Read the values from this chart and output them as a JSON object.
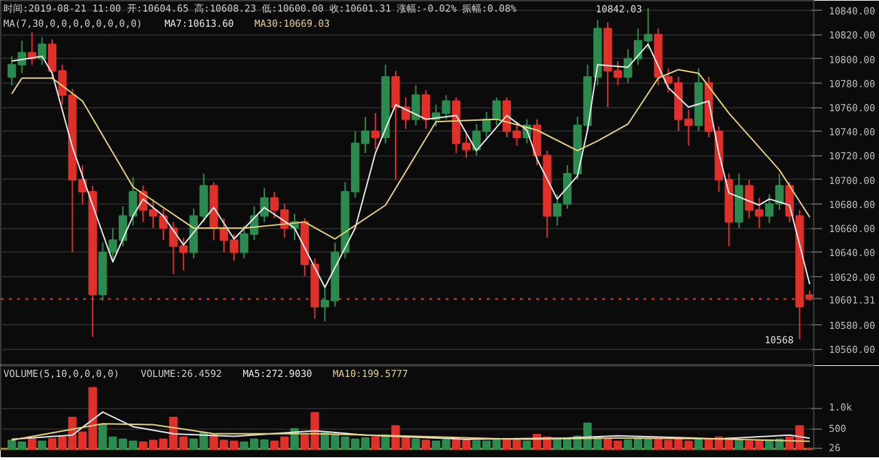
{
  "chart_data": [
    {
      "type": "candlestick",
      "title": "时间:2019-08-21 11:00 开:10604.65 高:10608.23 低:10600.00 收:10601.31 涨幅:-0.02% 振幅:0.08%",
      "annotations": [
        "MA(7,30,0,0,0,0,0,0,0,0)",
        "10842.03",
        "10568"
      ],
      "colors": [
        "#2b8a4e",
        "#2b8a4e",
        "#e0302a",
        "#2b8a4e",
        "#e0302a",
        "#e0302a",
        "#e0302a",
        "#e0302a",
        "#e0302a",
        "#2b8a4e",
        "#2b8a4e",
        "#2b8a4e",
        "#2b8a4e",
        "#e0302a",
        "#e0302a",
        "#e0302a",
        "#e0302a",
        "#e0302a",
        "#2b8a4e",
        "#2b8a4e",
        "#e0302a",
        "#e0302a",
        "#e0302a",
        "#2b8a4e",
        "#2b8a4e",
        "#2b8a4e",
        "#e0302a",
        "#e0302a",
        "#2b8a4e",
        "#e0302a",
        "#e0302a",
        "#2b8a4e",
        "#2b8a4e",
        "#2b8a4e",
        "#2b8a4e",
        "#2b8a4e",
        "#e0302a",
        "#2b8a4e",
        "#e0302a",
        "#e0302a",
        "#2b8a4e",
        "#e0302a",
        "#2b8a4e",
        "#2b8a4e",
        "#e0302a",
        "#e0302a",
        "#2b8a4e",
        "#2b8a4e",
        "#2b8a4e",
        "#e0302a",
        "#e0302a",
        "#2b8a4e",
        "#e0302a",
        "#e0302a",
        "#2b8a4e",
        "#2b8a4e",
        "#2b8a4e",
        "#2b8a4e",
        "#2b8a4e",
        "#e0302a",
        "#e0302a",
        "#2b8a4e",
        "#2b8a4e",
        "#2b8a4e",
        "#e0302a",
        "#e0302a",
        "#e0302a",
        "#e0302a",
        "#2b8a4e",
        "#e0302a",
        "#e0302a",
        "#e0302a",
        "#2b8a4e",
        "#e0302a",
        "#e0302a",
        "#2b8a4e",
        "#2b8a4e",
        "#e0302a",
        "#e0302a",
        "#e0302a"
      ],
      "categories": [
        null,
        null,
        null,
        null,
        null,
        null,
        null,
        null,
        null,
        null,
        null,
        null,
        null,
        null,
        null,
        null,
        null,
        null,
        null,
        null,
        null,
        null,
        null,
        null,
        null,
        null,
        null,
        null,
        null,
        null,
        null,
        null,
        null,
        null,
        null,
        null,
        null,
        null,
        null,
        null,
        null,
        null,
        null,
        null,
        null,
        null,
        null,
        null,
        null,
        null,
        null,
        null,
        null,
        null,
        null,
        null,
        null,
        null,
        null,
        null,
        null,
        null,
        null,
        null,
        null,
        null,
        null,
        null,
        null,
        null,
        null,
        null,
        null,
        null,
        null,
        null,
        null,
        null,
        null,
        null
      ],
      "ohlc": [
        [
          10785,
          10802,
          10778,
          10795
        ],
        [
          10795,
          10815,
          10788,
          10805
        ],
        [
          10805,
          10822,
          10795,
          10800
        ],
        [
          10800,
          10818,
          10795,
          10812
        ],
        [
          10812,
          10816,
          10783,
          10790
        ],
        [
          10790,
          10795,
          10762,
          10770
        ],
        [
          10770,
          10775,
          10640,
          10700
        ],
        [
          10700,
          10712,
          10680,
          10690
        ],
        [
          10690,
          10695,
          10570,
          10605
        ],
        [
          10605,
          10648,
          10600,
          10640
        ],
        [
          10640,
          10660,
          10632,
          10650
        ],
        [
          10650,
          10678,
          10645,
          10670
        ],
        [
          10670,
          10702,
          10662,
          10690
        ],
        [
          10690,
          10695,
          10665,
          10675
        ],
        [
          10675,
          10684,
          10660,
          10670
        ],
        [
          10670,
          10676,
          10650,
          10660
        ],
        [
          10660,
          10665,
          10622,
          10645
        ],
        [
          10645,
          10652,
          10625,
          10640
        ],
        [
          10640,
          10676,
          10635,
          10670
        ],
        [
          10670,
          10705,
          10665,
          10695
        ],
        [
          10695,
          10698,
          10650,
          10660
        ],
        [
          10660,
          10668,
          10640,
          10650
        ],
        [
          10650,
          10655,
          10633,
          10640
        ],
        [
          10640,
          10662,
          10635,
          10655
        ],
        [
          10655,
          10678,
          10650,
          10670
        ],
        [
          10670,
          10693,
          10665,
          10685
        ],
        [
          10685,
          10690,
          10668,
          10675
        ],
        [
          10675,
          10680,
          10652,
          10660
        ],
        [
          10660,
          10672,
          10650,
          10665
        ],
        [
          10665,
          10668,
          10620,
          10630
        ],
        [
          10630,
          10635,
          10585,
          10595
        ],
        [
          10595,
          10612,
          10583,
          10600
        ],
        [
          10600,
          10648,
          10595,
          10640
        ],
        [
          10640,
          10698,
          10635,
          10690
        ],
        [
          10690,
          10740,
          10685,
          10730
        ],
        [
          10730,
          10752,
          10722,
          10740
        ],
        [
          10740,
          10755,
          10725,
          10735
        ],
        [
          10735,
          10795,
          10730,
          10785
        ],
        [
          10785,
          10790,
          10700,
          10760
        ],
        [
          10760,
          10768,
          10742,
          10750
        ],
        [
          10750,
          10778,
          10745,
          10770
        ],
        [
          10770,
          10774,
          10742,
          10750
        ],
        [
          10750,
          10762,
          10744,
          10755
        ],
        [
          10755,
          10770,
          10750,
          10765
        ],
        [
          10765,
          10768,
          10722,
          10730
        ],
        [
          10730,
          10738,
          10718,
          10725
        ],
        [
          10725,
          10746,
          10720,
          10740
        ],
        [
          10740,
          10756,
          10735,
          10750
        ],
        [
          10750,
          10768,
          10745,
          10765
        ],
        [
          10765,
          10768,
          10735,
          10740
        ],
        [
          10740,
          10748,
          10728,
          10735
        ],
        [
          10735,
          10750,
          10730,
          10745
        ],
        [
          10745,
          10750,
          10712,
          10720
        ],
        [
          10720,
          10724,
          10652,
          10670
        ],
        [
          10670,
          10688,
          10662,
          10680
        ],
        [
          10680,
          10712,
          10676,
          10705
        ],
        [
          10705,
          10752,
          10700,
          10745
        ],
        [
          10745,
          10795,
          10740,
          10785
        ],
        [
          10785,
          10832,
          10778,
          10825
        ],
        [
          10825,
          10830,
          10760,
          10790
        ],
        [
          10790,
          10798,
          10778,
          10785
        ],
        [
          10785,
          10808,
          10780,
          10800
        ],
        [
          10800,
          10825,
          10795,
          10815
        ],
        [
          10815,
          10842.03,
          10808,
          10820
        ],
        [
          10820,
          10825,
          10778,
          10785
        ],
        [
          10785,
          10792,
          10772,
          10780
        ],
        [
          10780,
          10785,
          10740,
          10750
        ],
        [
          10750,
          10758,
          10728,
          10745
        ],
        [
          10745,
          10792,
          10740,
          10780
        ],
        [
          10780,
          10785,
          10735,
          10740
        ],
        [
          10740,
          10744,
          10690,
          10700
        ],
        [
          10700,
          10705,
          10645,
          10665
        ],
        [
          10665,
          10705,
          10660,
          10695
        ],
        [
          10695,
          10700,
          10668,
          10675
        ],
        [
          10675,
          10685,
          10660,
          10670
        ],
        [
          10670,
          10688,
          10664,
          10680
        ],
        [
          10680,
          10705,
          10675,
          10695
        ],
        [
          10695,
          10698,
          10665,
          10670
        ],
        [
          10670,
          10675,
          10568,
          10595
        ],
        [
          10604.65,
          10608.23,
          10600.0,
          10601.31
        ]
      ],
      "series": [
        {
          "type": "line",
          "name": "MA7:10613.60",
          "color": "#e8e8e8",
          "values": [
            10798,
            null,
            null,
            10802,
            10788,
            null,
            10727,
            null,
            10679,
            null,
            10632,
            null,
            10670,
            10684,
            null,
            10670,
            null,
            10646,
            null,
            null,
            10677,
            null,
            10651,
            null,
            null,
            10677,
            null,
            null,
            10660,
            null,
            null,
            10611,
            null,
            null,
            10660,
            null,
            10722,
            null,
            10762,
            null,
            null,
            10750,
            null,
            null,
            10753,
            null,
            10724,
            null,
            null,
            10753,
            null,
            10741,
            10717,
            null,
            10684,
            null,
            10703,
            10741,
            10795,
            null,
            null,
            10793,
            null,
            10812,
            null,
            10776,
            null,
            10760,
            null,
            10765,
            10722,
            10689,
            null,
            null,
            10679,
            10684,
            null,
            10679,
            null,
            10613.6
          ]
        },
        {
          "type": "line",
          "name": "MA30:10669.03",
          "color": "#e6d27a",
          "values": [
            10771,
            10784,
            null,
            null,
            10784,
            null,
            null,
            10765,
            null,
            null,
            null,
            null,
            10694,
            null,
            null,
            null,
            null,
            null,
            10660,
            null,
            null,
            null,
            null,
            10660,
            null,
            null,
            null,
            null,
            null,
            10665,
            null,
            null,
            10651,
            null,
            null,
            null,
            null,
            10679,
            null,
            null,
            null,
            null,
            10748,
            null,
            null,
            null,
            null,
            null,
            10750,
            null,
            null,
            null,
            10741,
            null,
            null,
            null,
            10724,
            null,
            10732,
            null,
            null,
            10746,
            null,
            null,
            10784,
            null,
            10791,
            null,
            10788,
            null,
            null,
            10755,
            null,
            null,
            null,
            null,
            10708,
            null,
            null,
            10669.03
          ]
        }
      ],
      "ylim": [
        10546,
        10848
      ],
      "yticks": [
        {
          "value": 10560,
          "label": "10560.00"
        },
        {
          "value": 10580,
          "label": "10580.00"
        },
        {
          "value": 10620,
          "label": "10620.00"
        },
        {
          "value": 10640,
          "label": "10640.00"
        },
        {
          "value": 10660,
          "label": "10660.00"
        },
        {
          "value": 10680,
          "label": "10680.00"
        },
        {
          "value": 10700,
          "label": "10700.00"
        },
        {
          "value": 10720,
          "label": "10720.00"
        },
        {
          "value": 10740,
          "label": "10740.00"
        },
        {
          "value": 10760,
          "label": "10760.00"
        },
        {
          "value": 10780,
          "label": "10780.00"
        },
        {
          "value": 10800,
          "label": "10800.00"
        },
        {
          "value": 10820,
          "label": "10820.00"
        },
        {
          "value": 10840,
          "label": "10840.00"
        }
      ],
      "ref_lines": [
        {
          "axis": "y",
          "value": 10601.31,
          "label": "10601.31",
          "color": "#e8412c",
          "line_style": "dotted"
        }
      ],
      "grid": "y",
      "tick_labels": "y"
    },
    {
      "type": "bar",
      "annotations": [
        "VOLUME(5,10,0,0,0,0)",
        "VOLUME:26.4592"
      ],
      "categories": [
        null,
        null,
        null,
        null,
        null,
        null,
        null,
        null,
        null,
        null,
        null,
        null,
        null,
        null,
        null,
        null,
        null,
        null,
        null,
        null,
        null,
        null,
        null,
        null,
        null,
        null,
        null,
        null,
        null,
        null,
        null,
        null,
        null,
        null,
        null,
        null,
        null,
        null,
        null,
        null,
        null,
        null,
        null,
        null,
        null,
        null,
        null,
        null,
        null,
        null,
        null,
        null,
        null,
        null,
        null,
        null,
        null,
        null,
        null,
        null,
        null,
        null,
        null,
        null,
        null,
        null,
        null,
        null,
        null,
        null,
        null,
        null,
        null,
        null,
        null,
        null,
        null,
        null,
        null,
        null
      ],
      "values": [
        220,
        180,
        250,
        200,
        260,
        300,
        770,
        420,
        1480,
        600,
        300,
        250,
        200,
        180,
        220,
        250,
        770,
        300,
        250,
        400,
        350,
        220,
        200,
        180,
        250,
        230,
        200,
        300,
        500,
        350,
        880,
        400,
        350,
        300,
        250,
        280,
        300,
        350,
        570,
        300,
        250,
        220,
        200,
        230,
        260,
        240,
        210,
        200,
        230,
        250,
        220,
        200,
        360,
        300,
        250,
        280,
        320,
        630,
        300,
        250,
        200,
        230,
        280,
        260,
        240,
        220,
        250,
        200,
        230,
        260,
        300,
        280,
        220,
        200,
        210,
        230,
        250,
        300,
        570,
        26.4592
      ],
      "colors": [
        "#2b8a4e",
        "#2b8a4e",
        "#e0302a",
        "#2b8a4e",
        "#e0302a",
        "#e0302a",
        "#e0302a",
        "#e0302a",
        "#e0302a",
        "#2b8a4e",
        "#2b8a4e",
        "#2b8a4e",
        "#2b8a4e",
        "#e0302a",
        "#e0302a",
        "#e0302a",
        "#e0302a",
        "#e0302a",
        "#2b8a4e",
        "#2b8a4e",
        "#e0302a",
        "#e0302a",
        "#e0302a",
        "#2b8a4e",
        "#2b8a4e",
        "#2b8a4e",
        "#e0302a",
        "#e0302a",
        "#2b8a4e",
        "#e0302a",
        "#e0302a",
        "#2b8a4e",
        "#2b8a4e",
        "#2b8a4e",
        "#2b8a4e",
        "#2b8a4e",
        "#e0302a",
        "#2b8a4e",
        "#e0302a",
        "#e0302a",
        "#2b8a4e",
        "#e0302a",
        "#2b8a4e",
        "#2b8a4e",
        "#e0302a",
        "#e0302a",
        "#2b8a4e",
        "#2b8a4e",
        "#2b8a4e",
        "#e0302a",
        "#e0302a",
        "#2b8a4e",
        "#e0302a",
        "#e0302a",
        "#2b8a4e",
        "#2b8a4e",
        "#2b8a4e",
        "#2b8a4e",
        "#2b8a4e",
        "#e0302a",
        "#e0302a",
        "#2b8a4e",
        "#2b8a4e",
        "#2b8a4e",
        "#e0302a",
        "#e0302a",
        "#e0302a",
        "#e0302a",
        "#2b8a4e",
        "#e0302a",
        "#e0302a",
        "#e0302a",
        "#2b8a4e",
        "#e0302a",
        "#e0302a",
        "#2b8a4e",
        "#2b8a4e",
        "#e0302a",
        "#e0302a",
        "#e0302a"
      ],
      "series": [
        {
          "type": "line",
          "name": "MA5:272.9030",
          "color": "#e8e8e8",
          "values": [
            250,
            null,
            null,
            null,
            null,
            null,
            350,
            null,
            null,
            900,
            null,
            null,
            550,
            null,
            null,
            null,
            380,
            null,
            null,
            null,
            null,
            null,
            320,
            null,
            null,
            null,
            null,
            null,
            null,
            null,
            450,
            null,
            null,
            null,
            null,
            350,
            null,
            null,
            null,
            null,
            null,
            null,
            null,
            null,
            null,
            250,
            null,
            null,
            null,
            null,
            null,
            null,
            null,
            null,
            null,
            280,
            null,
            null,
            null,
            null,
            330,
            null,
            null,
            null,
            null,
            null,
            null,
            null,
            null,
            null,
            260,
            null,
            null,
            null,
            null,
            null,
            null,
            350,
            null,
            272.903
          ]
        },
        {
          "type": "line",
          "name": "MA10:199.5777",
          "color": "#e6d27a",
          "values": [
            230,
            null,
            null,
            null,
            null,
            null,
            null,
            null,
            null,
            620,
            null,
            null,
            null,
            null,
            600,
            null,
            null,
            null,
            null,
            null,
            380,
            null,
            null,
            null,
            null,
            null,
            null,
            null,
            null,
            null,
            380,
            null,
            null,
            null,
            null,
            null,
            null,
            null,
            null,
            null,
            320,
            null,
            null,
            null,
            null,
            null,
            null,
            null,
            null,
            null,
            250,
            null,
            null,
            null,
            null,
            null,
            null,
            null,
            null,
            null,
            280,
            null,
            null,
            null,
            null,
            null,
            null,
            null,
            null,
            null,
            260,
            null,
            null,
            null,
            null,
            null,
            null,
            null,
            null,
            199.5777
          ]
        }
      ],
      "ylim": [
        0,
        2000
      ],
      "yticks": [
        {
          "value": 500,
          "label": "500"
        },
        {
          "value": 1000,
          "label": "1.0k"
        }
      ],
      "ref_lines": [
        {
          "axis": "y",
          "value": 26.4592,
          "label": "26",
          "color": "#d9a514",
          "line_style": "solid"
        }
      ],
      "grid": "y",
      "tick_labels": "y"
    }
  ]
}
